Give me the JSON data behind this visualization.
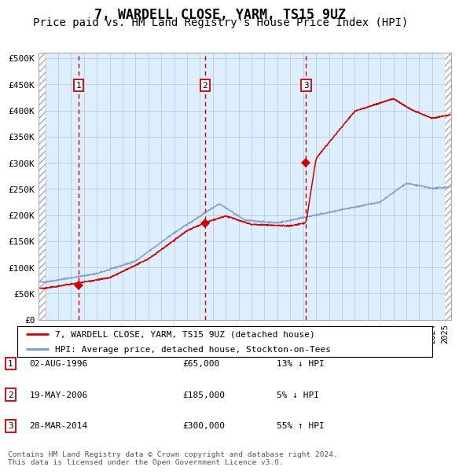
{
  "title1": "7, WARDELL CLOSE, YARM, TS15 9UZ",
  "title2": "Price paid vs. HM Land Registry's House Price Index (HPI)",
  "ylabel_ticks": [
    "£0",
    "£50K",
    "£100K",
    "£150K",
    "£200K",
    "£250K",
    "£300K",
    "£350K",
    "£400K",
    "£450K",
    "£500K"
  ],
  "ytick_vals": [
    0,
    50000,
    100000,
    150000,
    200000,
    250000,
    300000,
    350000,
    400000,
    450000,
    500000
  ],
  "xmin": 1993.5,
  "xmax": 2025.5,
  "ymin": 0,
  "ymax": 510000,
  "sale_dates": [
    1996.583,
    2006.38,
    2014.23
  ],
  "sale_prices": [
    65000,
    185000,
    300000
  ],
  "sale_labels": [
    "1",
    "2",
    "3"
  ],
  "red_line_color": "#cc0000",
  "blue_line_color": "#7799cc",
  "bg_color": "#ddeeff",
  "legend_entries": [
    "7, WARDELL CLOSE, YARM, TS15 9UZ (detached house)",
    "HPI: Average price, detached house, Stockton-on-Tees"
  ],
  "table_rows": [
    {
      "num": "1",
      "date": "02-AUG-1996",
      "price": "£65,000",
      "hpi": "13% ↓ HPI"
    },
    {
      "num": "2",
      "date": "19-MAY-2006",
      "price": "£185,000",
      "hpi": "5% ↓ HPI"
    },
    {
      "num": "3",
      "date": "28-MAR-2014",
      "price": "£300,000",
      "hpi": "55% ↑ HPI"
    }
  ],
  "footnote": "Contains HM Land Registry data © Crown copyright and database right 2024.\nThis data is licensed under the Open Government Licence v3.0.",
  "title_fontsize": 12,
  "subtitle_fontsize": 10
}
